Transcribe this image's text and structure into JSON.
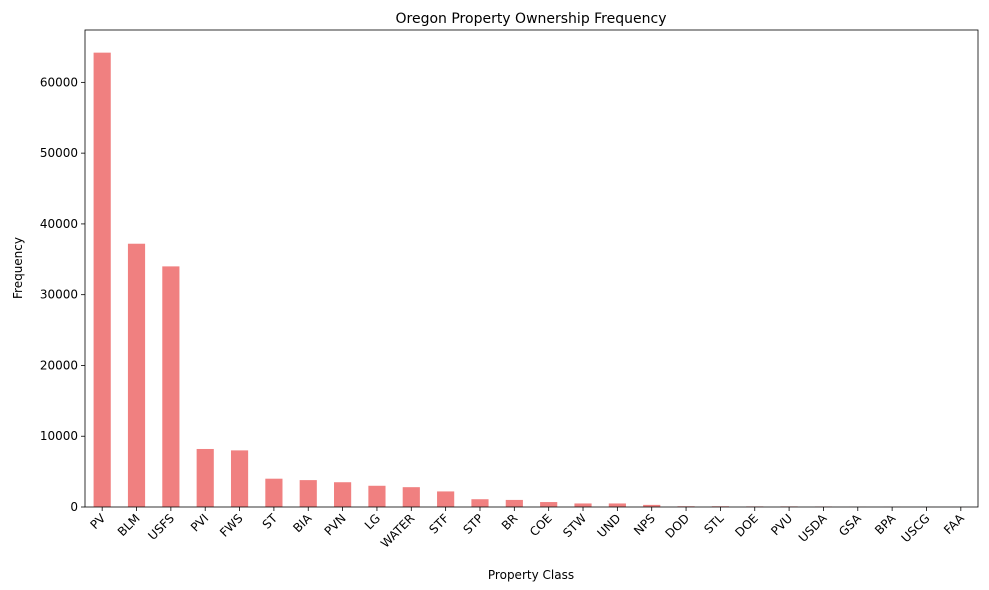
{
  "chart_data": {
    "type": "bar",
    "title": "Oregon Property Ownership Frequency",
    "xlabel": "Property Class",
    "ylabel": "Frequency",
    "categories": [
      "PV",
      "BLM",
      "USFS",
      "PVI",
      "FWS",
      "ST",
      "BIA",
      "PVN",
      "LG",
      "WATER",
      "STF",
      "STP",
      "BR",
      "COE",
      "STW",
      "UND",
      "NPS",
      "DOD",
      "STL",
      "DOE",
      "PVU",
      "USDA",
      "GSA",
      "BPA",
      "USCG",
      "FAA"
    ],
    "values": [
      64200,
      37200,
      34000,
      8200,
      8000,
      4000,
      3800,
      3500,
      3000,
      2800,
      2200,
      1100,
      1000,
      700,
      500,
      500,
      300,
      100,
      100,
      80,
      80,
      60,
      20,
      15,
      10,
      10
    ],
    "yticks": [
      0,
      10000,
      20000,
      30000,
      40000,
      50000,
      60000
    ],
    "ylim": [
      0,
      67400
    ],
    "grid": false,
    "legend": "none",
    "colors": {
      "bar": "#f08080",
      "axis": "#000000"
    }
  }
}
